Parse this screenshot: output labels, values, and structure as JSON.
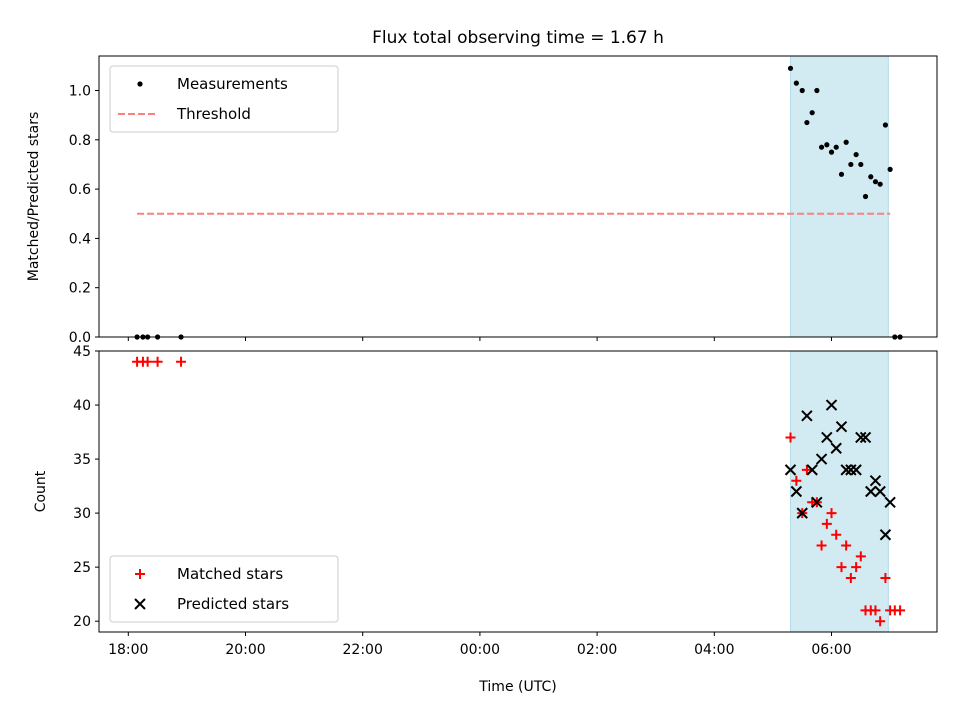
{
  "figure": {
    "title": "Flux total observing time = 1.67 h"
  },
  "chart_data": [
    {
      "type": "scatter",
      "ylabel": "Matched/Predicted stars",
      "xlabel": "",
      "x_unit": "hours (UTC, continuing past midnight)",
      "xlim": [
        17.5,
        31.8
      ],
      "ylim": [
        0.0,
        1.14
      ],
      "yticks": [
        0.0,
        0.2,
        0.4,
        0.6,
        0.8,
        1.0
      ],
      "ytick_labels": [
        "0.0",
        "0.2",
        "0.4",
        "0.6",
        "0.8",
        "1.0"
      ],
      "xticks": [
        18,
        20,
        22,
        24,
        26,
        28,
        30
      ],
      "show_xtick_labels": false,
      "grid": false,
      "legend_position": "upper-left",
      "highlight_span": {
        "x0": 29.3,
        "x1": 30.97,
        "color": "#add8e6"
      },
      "series": [
        {
          "name": "Measurements",
          "kind": "dots",
          "color": "#000000",
          "x": [
            18.15,
            18.25,
            18.33,
            18.5,
            18.9,
            29.3,
            29.4,
            29.5,
            29.58,
            29.67,
            29.75,
            29.83,
            29.92,
            30.0,
            30.08,
            30.17,
            30.25,
            30.33,
            30.42,
            30.5,
            30.58,
            30.67,
            30.75,
            30.83,
            30.92,
            31.0,
            31.08,
            31.17
          ],
          "y": [
            0.0,
            0.0,
            0.0,
            0.0,
            0.0,
            1.09,
            1.03,
            1.0,
            0.87,
            0.91,
            1.0,
            0.77,
            0.78,
            0.75,
            0.77,
            0.66,
            0.79,
            0.7,
            0.74,
            0.7,
            0.57,
            0.65,
            0.63,
            0.62,
            0.86,
            0.68,
            0.0,
            0.0
          ]
        },
        {
          "name": "Threshold",
          "kind": "dashed-line",
          "color": "#ff7f7f",
          "x": [
            18.15,
            31.0
          ],
          "y": [
            0.5,
            0.5
          ]
        }
      ]
    },
    {
      "type": "scatter",
      "ylabel": "Count",
      "xlabel": "Time (UTC)",
      "x_unit": "hours (UTC, continuing past midnight)",
      "xlim": [
        17.5,
        31.8
      ],
      "ylim": [
        19.0,
        45.0
      ],
      "yticks": [
        20,
        25,
        30,
        35,
        40,
        45
      ],
      "ytick_labels": [
        "20",
        "25",
        "30",
        "35",
        "40",
        "45"
      ],
      "xticks": [
        18,
        20,
        22,
        24,
        26,
        28,
        30
      ],
      "xtick_labels": [
        "18:00",
        "20:00",
        "22:00",
        "00:00",
        "02:00",
        "04:00",
        "06:00"
      ],
      "grid": false,
      "legend_position": "lower-left",
      "highlight_span": {
        "x0": 29.3,
        "x1": 30.97,
        "color": "#add8e6"
      },
      "series": [
        {
          "name": "Matched stars",
          "kind": "plus",
          "color": "#ff0000",
          "x": [
            18.15,
            18.25,
            18.33,
            18.5,
            18.9,
            29.3,
            29.4,
            29.5,
            29.58,
            29.67,
            29.75,
            29.83,
            29.92,
            30.0,
            30.08,
            30.17,
            30.25,
            30.33,
            30.42,
            30.5,
            30.58,
            30.67,
            30.75,
            30.83,
            30.92,
            31.0,
            31.08,
            31.17
          ],
          "y": [
            44,
            44,
            44,
            44,
            44,
            37,
            33,
            30,
            34,
            31,
            31,
            27,
            29,
            30,
            28,
            25,
            27,
            24,
            25,
            26,
            21,
            21,
            21,
            20,
            24,
            21,
            21,
            21
          ]
        },
        {
          "name": "Predicted stars",
          "kind": "x",
          "color": "#000000",
          "x": [
            29.3,
            29.4,
            29.5,
            29.58,
            29.67,
            29.75,
            29.83,
            29.92,
            30.0,
            30.08,
            30.17,
            30.25,
            30.33,
            30.42,
            30.5,
            30.58,
            30.67,
            30.75,
            30.83,
            30.92,
            31.0
          ],
          "y": [
            34,
            32,
            30,
            39,
            34,
            31,
            35,
            37,
            40,
            36,
            38,
            34,
            34,
            34,
            37,
            37,
            32,
            33,
            32,
            28,
            31
          ]
        }
      ]
    }
  ]
}
